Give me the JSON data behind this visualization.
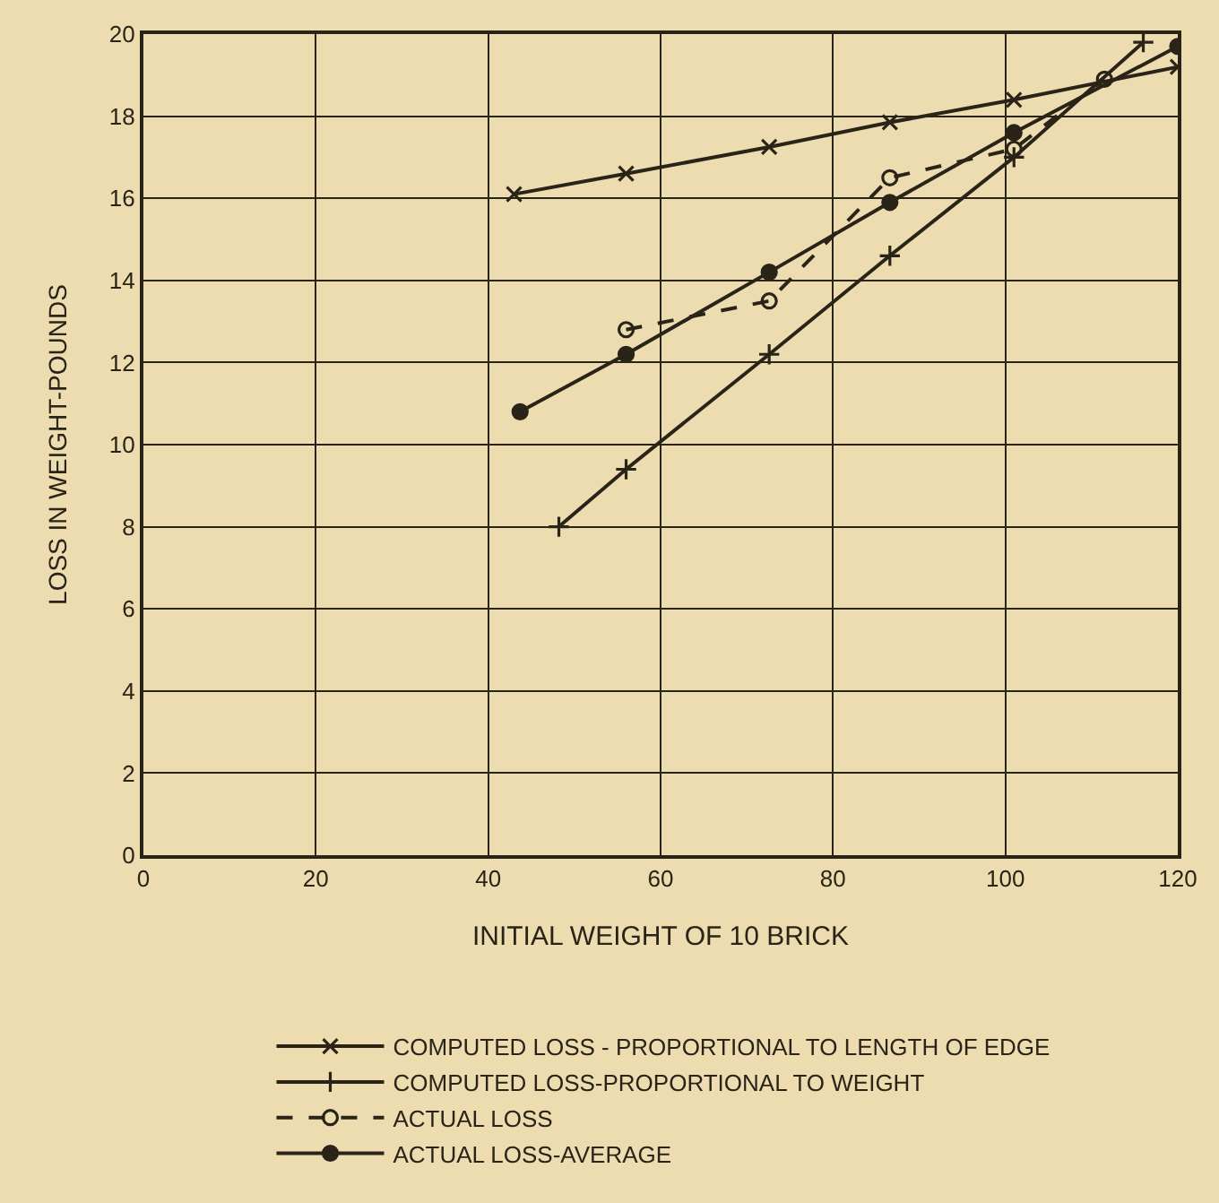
{
  "chart_data": {
    "type": "line",
    "xlabel": "INITIAL WEIGHT OF 10 BRICK",
    "ylabel": "LOSS IN WEIGHT-POUNDS",
    "xlim": [
      0,
      120
    ],
    "ylim": [
      0,
      20
    ],
    "xticks": [
      0,
      20,
      40,
      60,
      80,
      100,
      120
    ],
    "yticks": [
      0,
      2,
      4,
      6,
      8,
      10,
      12,
      14,
      16,
      18,
      20
    ],
    "grid": true,
    "legend": "bottom",
    "series": [
      {
        "name": "COMPUTED LOSS - PROPORTIONAL TO LENGTH OF EDGE",
        "color": "#2a2418",
        "marker": "cross",
        "line_style": "solid",
        "x": [
          43,
          56,
          72.6,
          86.6,
          101,
          120
        ],
        "values": [
          16.1,
          16.6,
          17.25,
          17.85,
          18.4,
          19.2
        ]
      },
      {
        "name": "COMPUTED LOSS-PROPORTIONAL TO WEIGHT",
        "color": "#2a2418",
        "marker": "plus",
        "line_style": "solid",
        "x": [
          48.2,
          56,
          72.6,
          86.6,
          101,
          116
        ],
        "values": [
          8,
          9.4,
          12.2,
          14.6,
          17.0,
          19.8
        ]
      },
      {
        "name": "ACTUAL LOSS",
        "color": "#2a2418",
        "marker": "circle-open",
        "line_style": "dashed",
        "x": [
          56,
          72.6,
          86.6,
          101,
          111.5
        ],
        "values": [
          12.8,
          13.5,
          16.5,
          17.2,
          18.9
        ]
      },
      {
        "name": "ACTUAL LOSS-AVERAGE",
        "color": "#2a2418",
        "marker": "circle",
        "line_style": "solid",
        "x": [
          43.7,
          56,
          72.6,
          86.6,
          101,
          120
        ],
        "values": [
          10.8,
          12.2,
          14.2,
          15.9,
          17.6,
          19.7
        ]
      }
    ]
  }
}
